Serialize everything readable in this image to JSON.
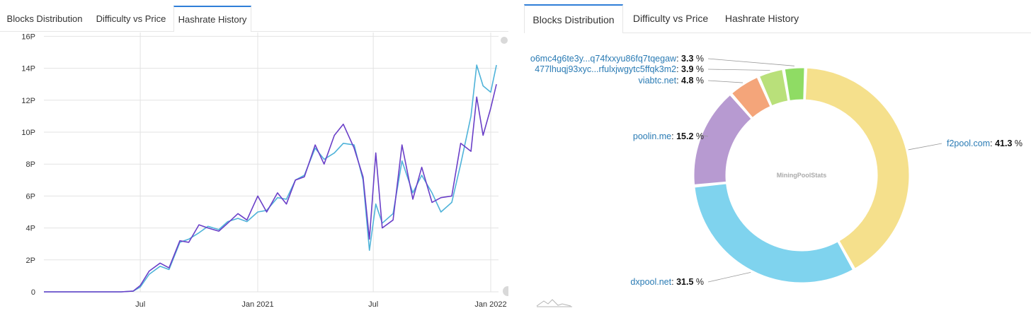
{
  "tabs_left": [
    "Blocks Distribution",
    "Difficulty vs Price",
    "Hashrate History"
  ],
  "tabs_right": [
    "Blocks Distribution",
    "Difficulty vs Price",
    "Hashrate History"
  ],
  "active_tab_left": 2,
  "active_tab_right": 0,
  "colors": {
    "accent": "#2f7ed8",
    "series_light": "#4fb3d9",
    "series_dark": "#6a3fc8",
    "f2pool": "#f5e08c",
    "dxpool": "#7fd3ee",
    "poolin": "#b79ad1",
    "viabtc": "#f4a57a",
    "pool_39": "#b9e07a",
    "pool_33": "#8fdc64"
  },
  "chart_data": [
    {
      "type": "line",
      "x_unit": "month",
      "x_range": [
        "2020-02",
        "2022-01"
      ],
      "xticks": [
        "Jul",
        "Jan 2021",
        "Jul",
        "Jan 2022"
      ],
      "xtick_positions": [
        "2020-07",
        "2021-01",
        "2021-07",
        "2022-01"
      ],
      "yticks": [
        "0",
        "2P",
        "4P",
        "6P",
        "8P",
        "10P",
        "12P",
        "14P",
        "16P"
      ],
      "ylim": [
        0,
        16
      ],
      "grid": true,
      "series": [
        {
          "color": "#4fb3d9",
          "x": [
            "2020-02-01",
            "2020-03-01",
            "2020-04-01",
            "2020-05-01",
            "2020-06-01",
            "2020-06-20",
            "2020-07-01",
            "2020-07-15",
            "2020-08-01",
            "2020-08-15",
            "2020-09-01",
            "2020-09-15",
            "2020-10-01",
            "2020-10-15",
            "2020-11-01",
            "2020-11-15",
            "2020-12-01",
            "2020-12-15",
            "2021-01-01",
            "2021-01-15",
            "2021-02-01",
            "2021-02-15",
            "2021-03-01",
            "2021-03-15",
            "2021-04-01",
            "2021-04-15",
            "2021-05-01",
            "2021-05-15",
            "2021-06-01",
            "2021-06-15",
            "2021-06-25",
            "2021-07-05",
            "2021-07-15",
            "2021-08-01",
            "2021-08-15",
            "2021-09-01",
            "2021-09-15",
            "2021-10-01",
            "2021-10-15",
            "2021-11-01",
            "2021-11-15",
            "2021-12-01",
            "2021-12-10",
            "2021-12-20",
            "2022-01-01",
            "2022-01-10"
          ],
          "y": [
            0,
            0,
            0,
            0,
            0,
            0.05,
            0.3,
            1.1,
            1.6,
            1.4,
            3.1,
            3.3,
            3.7,
            4.1,
            3.9,
            4.4,
            4.6,
            4.4,
            5.0,
            5.1,
            5.9,
            5.8,
            7.0,
            7.3,
            9.0,
            8.3,
            8.7,
            9.3,
            9.2,
            7.0,
            2.6,
            5.5,
            4.3,
            4.9,
            8.2,
            6.2,
            7.3,
            6.2,
            5.0,
            5.6,
            8.0,
            11.0,
            14.2,
            12.9,
            12.5,
            14.2
          ]
        },
        {
          "color": "#6a3fc8",
          "x": [
            "2020-02-01",
            "2020-03-01",
            "2020-04-01",
            "2020-05-01",
            "2020-06-01",
            "2020-06-20",
            "2020-07-01",
            "2020-07-15",
            "2020-08-01",
            "2020-08-15",
            "2020-09-01",
            "2020-09-15",
            "2020-10-01",
            "2020-10-15",
            "2020-11-01",
            "2020-11-15",
            "2020-12-01",
            "2020-12-15",
            "2021-01-01",
            "2021-01-15",
            "2021-02-01",
            "2021-02-15",
            "2021-03-01",
            "2021-03-15",
            "2021-04-01",
            "2021-04-15",
            "2021-05-01",
            "2021-05-15",
            "2021-06-01",
            "2021-06-15",
            "2021-06-25",
            "2021-07-05",
            "2021-07-15",
            "2021-08-01",
            "2021-08-15",
            "2021-09-01",
            "2021-09-15",
            "2021-10-01",
            "2021-10-15",
            "2021-11-01",
            "2021-11-15",
            "2021-12-01",
            "2021-12-10",
            "2021-12-20",
            "2022-01-01",
            "2022-01-10"
          ],
          "y": [
            0,
            0,
            0,
            0,
            0,
            0.05,
            0.4,
            1.3,
            1.8,
            1.5,
            3.2,
            3.1,
            4.2,
            4.0,
            3.8,
            4.3,
            4.9,
            4.5,
            6.0,
            5.0,
            6.2,
            5.5,
            7.0,
            7.2,
            9.2,
            8.0,
            9.8,
            10.5,
            9.0,
            7.2,
            3.3,
            8.7,
            4.0,
            4.5,
            9.2,
            5.8,
            7.8,
            5.6,
            5.9,
            6.0,
            9.3,
            8.8,
            12.2,
            9.8,
            11.5,
            13.0
          ]
        }
      ]
    },
    {
      "type": "pie",
      "donut": true,
      "center_label": "MiningPoolStats",
      "slices": [
        {
          "label": "f2pool.com",
          "value": 41.3,
          "value_text": "41.3",
          "unit": "%",
          "color": "#f5e08c"
        },
        {
          "label": "dxpool.net",
          "value": 31.5,
          "value_text": "31.5",
          "unit": "%",
          "color": "#7fd3ee"
        },
        {
          "label": "poolin.me",
          "value": 15.2,
          "value_text": "15.2",
          "unit": "%",
          "color": "#b79ad1"
        },
        {
          "label": "viabtc.net",
          "value": 4.8,
          "value_text": "4.8",
          "unit": "%",
          "color": "#f4a57a"
        },
        {
          "label": "477lhuqj93xyc...rfulxjwgytc5ffqk3m2",
          "value": 3.9,
          "value_text": "3.9",
          "unit": "%",
          "color": "#b9e07a"
        },
        {
          "label": "o6mc4g6te3y...q74fxxyu86fq7tqegaw",
          "value": 3.3,
          "value_text": "3.3",
          "unit": "%",
          "color": "#8fdc64"
        }
      ]
    }
  ]
}
